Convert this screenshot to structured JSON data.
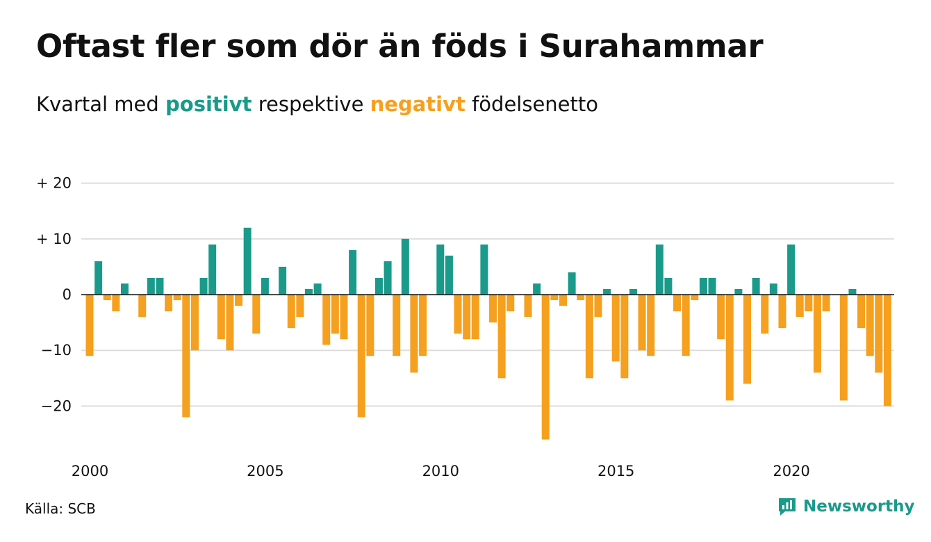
{
  "header": {
    "title": "Oftast fler som dör än föds i Surahammar",
    "subtitle_prefix": "Kvartal med ",
    "subtitle_positive": "positivt",
    "subtitle_middle": " respektive ",
    "subtitle_negative": "negativt",
    "subtitle_suffix": " födelsenetto"
  },
  "footer": {
    "source": "Källa: SCB",
    "brand": "Newsworthy"
  },
  "colors": {
    "positive": "#1a9a8a",
    "negative": "#f5a01e",
    "grid": "#dddddd",
    "zero_line": "#111111"
  },
  "chart_data": {
    "type": "bar",
    "title": "Oftast fler som dör än föds i Surahammar",
    "subtitle": "Kvartal med positivt respektive negativt födelsenetto",
    "xlabel": "",
    "ylabel": "",
    "ylim": [
      -27,
      20
    ],
    "y_ticks": [
      20,
      10,
      0,
      -10,
      -20
    ],
    "y_tick_labels": [
      "+ 20",
      "+ 10",
      "0",
      "−10",
      "−20"
    ],
    "x_ticks": [
      2000,
      2005,
      2010,
      2015,
      2020
    ],
    "x_tick_labels": [
      "2000",
      "2005",
      "2010",
      "2015",
      "2020"
    ],
    "categories": [
      "2000K1",
      "2000K2",
      "2000K3",
      "2000K4",
      "2001K1",
      "2001K2",
      "2001K3",
      "2001K4",
      "2002K1",
      "2002K2",
      "2002K3",
      "2002K4",
      "2003K1",
      "2003K2",
      "2003K3",
      "2003K4",
      "2004K1",
      "2004K2",
      "2004K3",
      "2004K4",
      "2005K1",
      "2005K2",
      "2005K3",
      "2005K4",
      "2006K1",
      "2006K2",
      "2006K3",
      "2006K4",
      "2007K1",
      "2007K2",
      "2007K3",
      "2007K4",
      "2008K1",
      "2008K2",
      "2008K3",
      "2008K4",
      "2009K1",
      "2009K2",
      "2009K3",
      "2009K4",
      "2010K1",
      "2010K2",
      "2010K3",
      "2010K4",
      "2011K1",
      "2011K2",
      "2011K3",
      "2011K4",
      "2012K1",
      "2012K2",
      "2012K3",
      "2012K4",
      "2013K1",
      "2013K2",
      "2013K3",
      "2013K4",
      "2014K1",
      "2014K2",
      "2014K3",
      "2014K4",
      "2015K1",
      "2015K2",
      "2015K3",
      "2015K4",
      "2016K1",
      "2016K2",
      "2016K3",
      "2016K4",
      "2017K1",
      "2017K2",
      "2017K3",
      "2017K4",
      "2018K1",
      "2018K2",
      "2018K3",
      "2018K4",
      "2019K1",
      "2019K2",
      "2019K3",
      "2019K4",
      "2020K1",
      "2020K2",
      "2020K3",
      "2020K4",
      "2021K1",
      "2021K2",
      "2021K3",
      "2021K4",
      "2022K1",
      "2022K2",
      "2022K3",
      "2022K4",
      "2023K1"
    ],
    "values": [
      -11,
      6,
      -1,
      -3,
      2,
      0,
      -4,
      3,
      3,
      -3,
      -1,
      -22,
      -10,
      3,
      9,
      -8,
      -10,
      -2,
      12,
      -7,
      3,
      0,
      5,
      -6,
      -4,
      1,
      2,
      -9,
      -7,
      -8,
      8,
      -22,
      -11,
      3,
      6,
      -11,
      10,
      -14,
      -11,
      0,
      9,
      7,
      -7,
      -8,
      -8,
      9,
      -5,
      -15,
      -3,
      0,
      -4,
      2,
      -26,
      -1,
      -2,
      4,
      -1,
      -15,
      -4,
      1,
      -12,
      -15,
      1,
      -10,
      -11,
      9,
      3,
      -3,
      -11,
      -1,
      3,
      3,
      -8,
      -19,
      1,
      -16,
      3,
      -7,
      2,
      -6,
      9,
      -4,
      -3,
      -14,
      -3,
      0,
      -19,
      1,
      -6,
      -11,
      -14,
      -20,
      0
    ],
    "grid": true,
    "legend": "none"
  }
}
